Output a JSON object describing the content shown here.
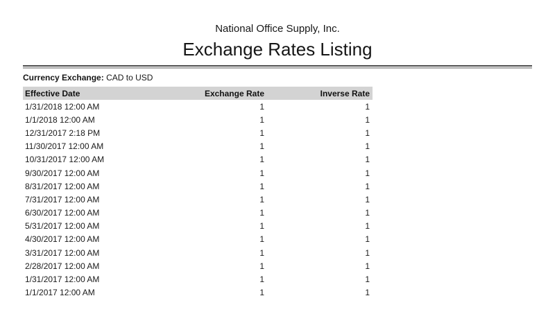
{
  "report": {
    "company": "National Office Supply, Inc.",
    "title": "Exchange Rates Listing",
    "filter_label": "Currency Exchange:",
    "filter_value": "CAD to USD"
  },
  "table": {
    "columns": [
      {
        "label": "Effective Date",
        "align": "left"
      },
      {
        "label": "Exchange Rate",
        "align": "right"
      },
      {
        "label": "Inverse Rate",
        "align": "right"
      }
    ],
    "rows": [
      {
        "date": "1/31/2018 12:00 AM",
        "exchange_rate": "1",
        "inverse_rate": "1"
      },
      {
        "date": "1/1/2018 12:00 AM",
        "exchange_rate": "1",
        "inverse_rate": "1"
      },
      {
        "date": "12/31/2017 2:18 PM",
        "exchange_rate": "1",
        "inverse_rate": "1"
      },
      {
        "date": "11/30/2017 12:00 AM",
        "exchange_rate": "1",
        "inverse_rate": "1"
      },
      {
        "date": "10/31/2017 12:00 AM",
        "exchange_rate": "1",
        "inverse_rate": "1"
      },
      {
        "date": "9/30/2017 12:00 AM",
        "exchange_rate": "1",
        "inverse_rate": "1"
      },
      {
        "date": "8/31/2017 12:00 AM",
        "exchange_rate": "1",
        "inverse_rate": "1"
      },
      {
        "date": "7/31/2017 12:00 AM",
        "exchange_rate": "1",
        "inverse_rate": "1"
      },
      {
        "date": "6/30/2017 12:00 AM",
        "exchange_rate": "1",
        "inverse_rate": "1"
      },
      {
        "date": "5/31/2017 12:00 AM",
        "exchange_rate": "1",
        "inverse_rate": "1"
      },
      {
        "date": "4/30/2017 12:00 AM",
        "exchange_rate": "1",
        "inverse_rate": "1"
      },
      {
        "date": "3/31/2017 12:00 AM",
        "exchange_rate": "1",
        "inverse_rate": "1"
      },
      {
        "date": "2/28/2017 12:00 AM",
        "exchange_rate": "1",
        "inverse_rate": "1"
      },
      {
        "date": "1/31/2017 12:00 AM",
        "exchange_rate": "1",
        "inverse_rate": "1"
      },
      {
        "date": "1/1/2017 12:00 AM",
        "exchange_rate": "1",
        "inverse_rate": "1"
      }
    ]
  },
  "colors": {
    "header_bg": "#d3d3d3",
    "rule_dark": "#4f4f4f",
    "rule_light": "#a9a9a9",
    "text": "#1a1a1a"
  }
}
